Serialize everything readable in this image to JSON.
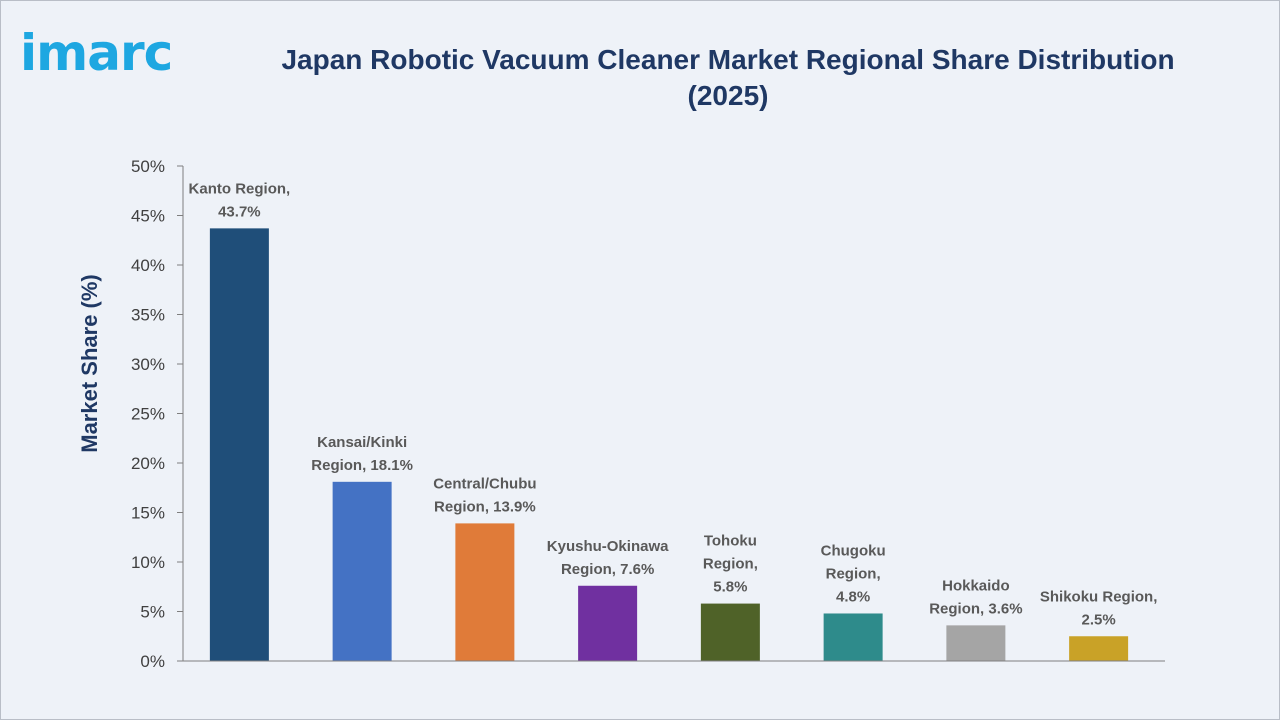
{
  "logo": {
    "text": "imarc"
  },
  "header": {
    "title": "Japan Robotic Vacuum Cleaner Market Regional Share Distribution (2025)"
  },
  "chart_data": {
    "type": "bar",
    "title": "Japan Robotic Vacuum Cleaner Market Regional Share Distribution (2025)",
    "ylabel": "Market Share (%)",
    "xlabel": "",
    "ylim": [
      0,
      50
    ],
    "yticks": [
      "0%",
      "5%",
      "10%",
      "15%",
      "20%",
      "25%",
      "30%",
      "35%",
      "40%",
      "45%",
      "50%"
    ],
    "grid": false,
    "categories": [
      "Kanto Region",
      "Kansai/Kinki Region",
      "Central/Chubu Region",
      "Kyushu-Okinawa Region",
      "Tohoku Region",
      "Chugoku Region",
      "Hokkaido Region",
      "Shikoku Region"
    ],
    "values": [
      43.7,
      18.1,
      13.9,
      7.6,
      5.8,
      4.8,
      3.6,
      2.5
    ],
    "colors": [
      "#1f4e79",
      "#4472c4",
      "#e07b39",
      "#7030a0",
      "#4f6228",
      "#2e8b8b",
      "#a5a5a5",
      "#c9a227"
    ],
    "data_labels": [
      [
        "Kanto Region,",
        "43.7%"
      ],
      [
        "Kansai/Kinki",
        "Region, 18.1%"
      ],
      [
        "Central/Chubu",
        "Region, 13.9%"
      ],
      [
        "Kyushu-Okinawa",
        "Region, 7.6%"
      ],
      [
        "Tohoku",
        "Region,",
        "5.8%"
      ],
      [
        "Chugoku",
        "Region,",
        "4.8%"
      ],
      [
        "Hokkaido",
        "Region, 3.6%"
      ],
      [
        "Shikoku Region,",
        "2.5%"
      ]
    ]
  }
}
